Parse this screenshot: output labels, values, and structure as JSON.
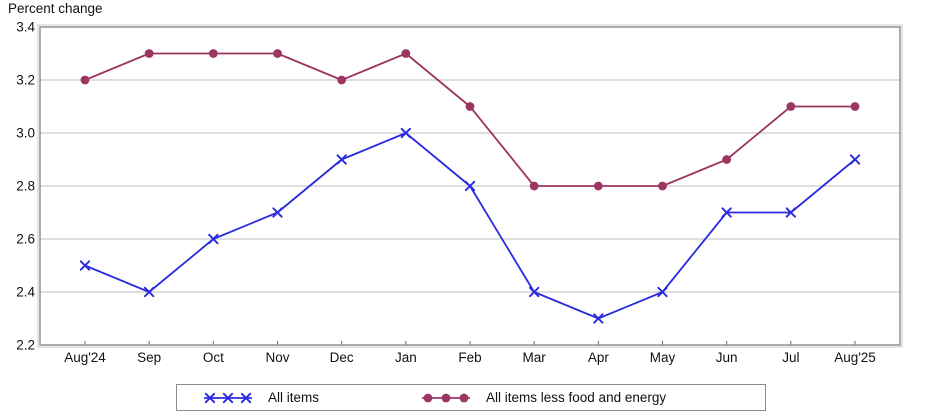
{
  "page_title": "Percent change",
  "colors": {
    "all_items_line": "#2a2ae0",
    "core_line": "#9d3563",
    "gridline": "#c9c9c9",
    "plot_border": "#8a8a8a",
    "plot_border_outer": "#d8d8d8",
    "tick": "#666666",
    "text": "#111111"
  },
  "chart_data": {
    "type": "line",
    "title": "Percent change",
    "xlabel": "",
    "ylabel": "Percent change",
    "categories": [
      "Aug'24",
      "Sep",
      "Oct",
      "Nov",
      "Dec",
      "Jan",
      "Feb",
      "Mar",
      "Apr",
      "May",
      "Jun",
      "Jul",
      "Aug'25"
    ],
    "series": [
      {
        "name": "All items",
        "color": "#2a2ae0",
        "marker": "x",
        "values": [
          2.5,
          2.4,
          2.6,
          2.7,
          2.9,
          3.0,
          2.8,
          2.4,
          2.3,
          2.4,
          2.7,
          2.7,
          2.9
        ]
      },
      {
        "name": "All items less food and energy",
        "color": "#9d3563",
        "marker": "circle",
        "values": [
          3.2,
          3.3,
          3.3,
          3.3,
          3.2,
          3.3,
          3.1,
          2.8,
          2.8,
          2.8,
          2.9,
          3.1,
          3.1
        ]
      }
    ],
    "ylim": [
      2.2,
      3.4
    ],
    "yticks": [
      2.2,
      2.4,
      2.6,
      2.8,
      3.0,
      3.2,
      3.4
    ],
    "ytick_labels": [
      "2.2",
      "2.4",
      "2.6",
      "2.8",
      "3.0",
      "3.2",
      "3.4"
    ],
    "grid": "horizontal",
    "legend_position": "bottom"
  }
}
